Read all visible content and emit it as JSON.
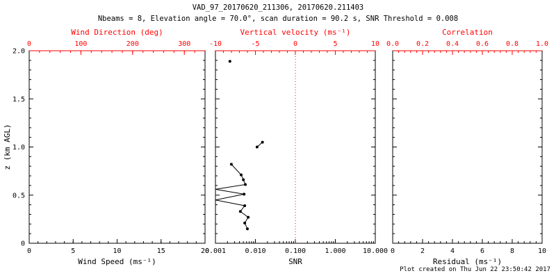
{
  "title": "VAD_97_20170620_211306, 20170620.211403",
  "subtitle": "Nbeams = 8, Elevation angle = 70.0°, scan duration = 90.2 s, SNR Threshold = 0.008",
  "footer": "Plot created on Thu Jun 22 23:50:42 2017",
  "colors": {
    "axis": "#000000",
    "top_axis": "#ff0000",
    "data": "#000000",
    "refline": "#ff0000",
    "background": "#ffffff"
  },
  "chart_data": [
    {
      "type": "scatter",
      "panel": "wind",
      "xlabel_bottom": "Wind Speed (ms⁻¹)",
      "xlabel_top": "Wind Direction (deg)",
      "ylabel": "z (km AGL)",
      "x_bottom": {
        "min": 0,
        "max": 20,
        "ticks": [
          0,
          5,
          10,
          15,
          20
        ],
        "tick_labels": [
          "0",
          "5",
          "10",
          "15",
          "20"
        ]
      },
      "x_top": {
        "min": 0,
        "max": 340,
        "ticks": [
          0,
          100,
          200,
          300
        ],
        "tick_labels": [
          "0",
          "100",
          "200",
          "300"
        ]
      },
      "y": {
        "min": 0,
        "max": 2.0,
        "ticks": [
          0,
          0.5,
          1.0,
          1.5,
          2.0
        ],
        "tick_labels": [
          "0",
          "0.5",
          "1.0",
          "1.5",
          "2.0"
        ]
      },
      "segments": []
    },
    {
      "type": "scatter",
      "panel": "snr",
      "xlabel_bottom": "SNR",
      "xlabel_top": "Vertical velocity (ms⁻¹)",
      "ylabel": "",
      "x_bottom": {
        "scale": "log",
        "min": 0.001,
        "max": 10.0,
        "ticks": [
          0.001,
          0.01,
          0.1,
          1.0,
          10.0
        ],
        "tick_labels": [
          "0.001",
          "0.010",
          "0.100",
          "1.000",
          "10.000"
        ]
      },
      "x_top": {
        "min": -10,
        "max": 10,
        "ticks": [
          -10,
          -5,
          0,
          5,
          10
        ],
        "tick_labels": [
          "-10",
          "-5",
          "0",
          "5",
          "10"
        ]
      },
      "y": {
        "min": 0,
        "max": 2.0,
        "ticks": [
          0,
          0.5,
          1.0,
          1.5,
          2.0
        ],
        "tick_labels": [
          "0",
          "0.5",
          "1.0",
          "1.5",
          "2.0"
        ]
      },
      "refline_x": 0.1,
      "segments": [
        [
          {
            "x": 0.0023,
            "z": 1.89
          }
        ],
        [
          {
            "x": 0.015,
            "z": 1.05
          },
          {
            "x": 0.011,
            "z": 1.0
          }
        ],
        [
          {
            "x": 0.0025,
            "z": 0.82
          },
          {
            "x": 0.0044,
            "z": 0.71
          },
          {
            "x": 0.005,
            "z": 0.66
          },
          {
            "x": 0.0056,
            "z": 0.61
          },
          {
            "x": 0.001,
            "z": 0.56,
            "marker": false
          },
          {
            "x": 0.0052,
            "z": 0.51
          },
          {
            "x": 0.001,
            "z": 0.45,
            "marker": false
          },
          {
            "x": 0.0054,
            "z": 0.39
          },
          {
            "x": 0.0042,
            "z": 0.33
          },
          {
            "x": 0.0066,
            "z": 0.27
          },
          {
            "x": 0.0054,
            "z": 0.21
          },
          {
            "x": 0.0063,
            "z": 0.15
          }
        ]
      ]
    },
    {
      "type": "scatter",
      "panel": "residual",
      "xlabel_bottom": "Residual (ms⁻¹)",
      "xlabel_top": "Correlation",
      "ylabel": "",
      "x_bottom": {
        "min": 0,
        "max": 10,
        "ticks": [
          0,
          2,
          4,
          6,
          8,
          10
        ],
        "tick_labels": [
          "0",
          "2",
          "4",
          "6",
          "8",
          "10"
        ]
      },
      "x_top": {
        "min": 0,
        "max": 1.0,
        "ticks": [
          0,
          0.2,
          0.4,
          0.6,
          0.8,
          1.0
        ],
        "tick_labels": [
          "0.0",
          "0.2",
          "0.4",
          "0.6",
          "0.8",
          "1.0"
        ]
      },
      "y": {
        "min": 0,
        "max": 2.0,
        "ticks": [
          0,
          0.5,
          1.0,
          1.5,
          2.0
        ],
        "tick_labels": [
          "0",
          "0.5",
          "1.0",
          "1.5",
          "2.0"
        ]
      },
      "segments": []
    }
  ]
}
